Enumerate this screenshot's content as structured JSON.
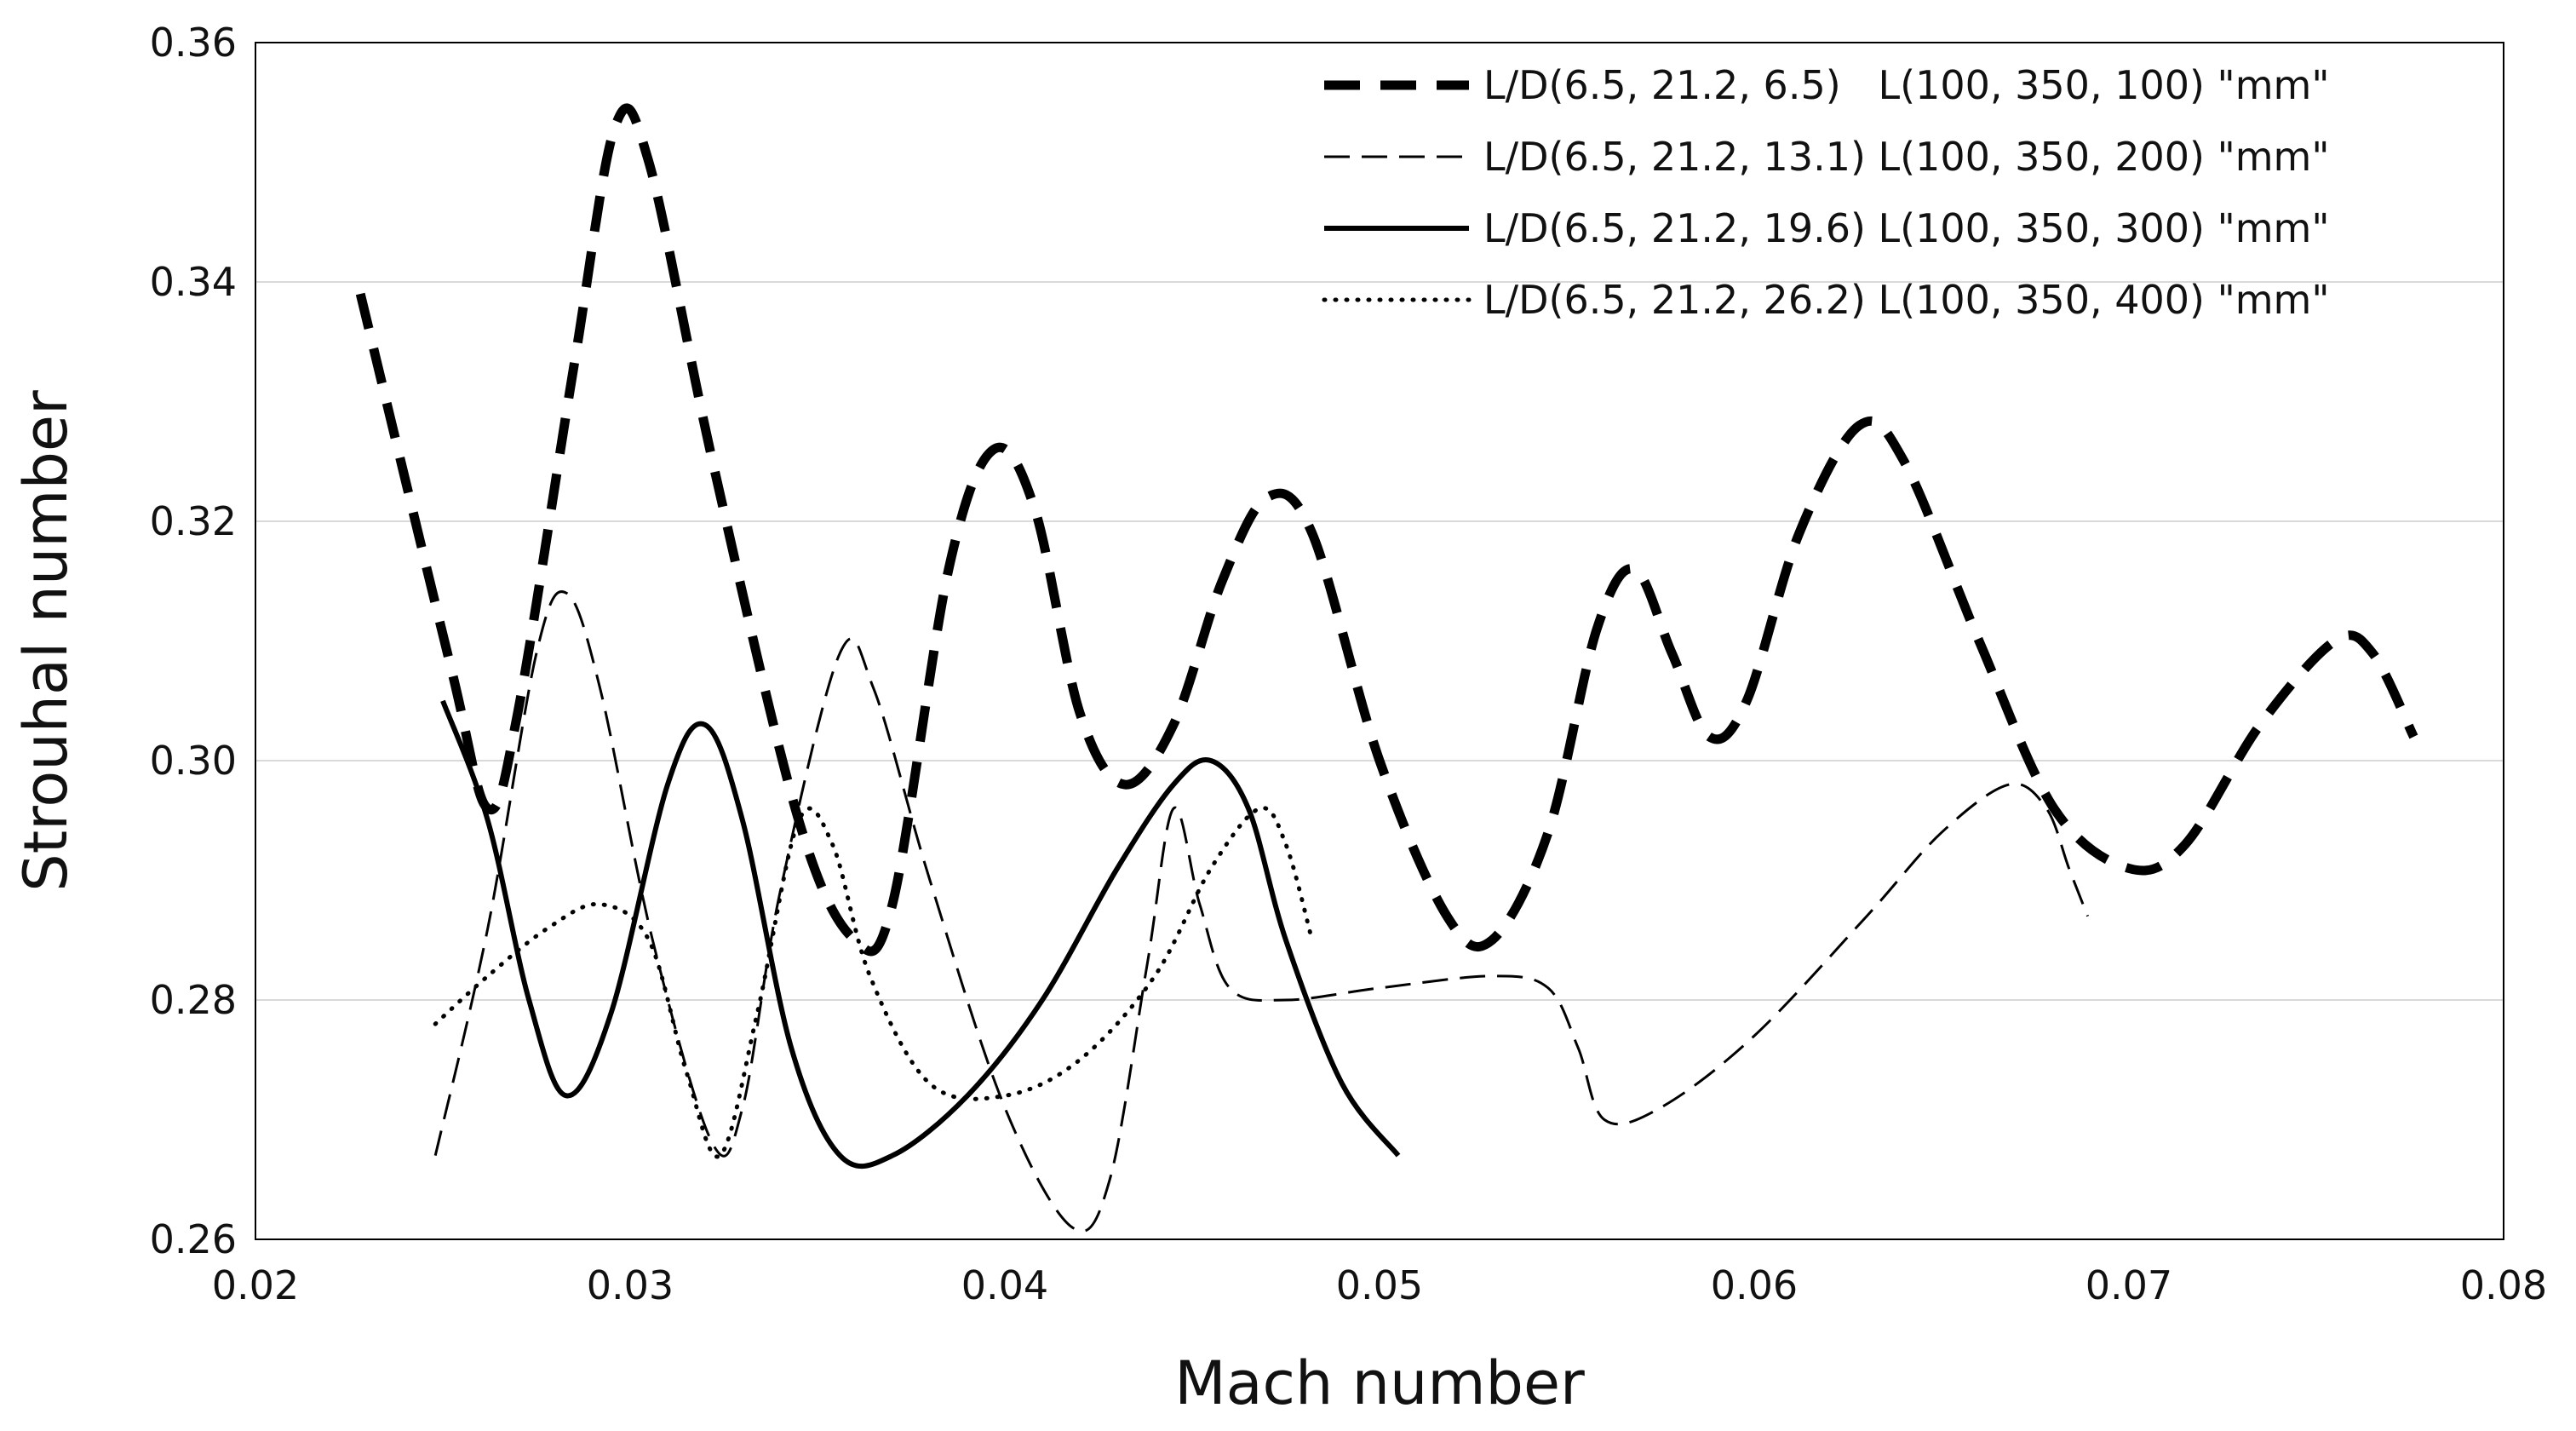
{
  "chart_data": {
    "type": "line",
    "title": "",
    "xlabel": "Mach number",
    "ylabel": "Strouhal number",
    "xlim": [
      0.02,
      0.08
    ],
    "ylim": [
      0.26,
      0.36
    ],
    "x_ticks": [
      "0.02",
      "0.03",
      "0.04",
      "0.05",
      "0.06",
      "0.07",
      "0.08"
    ],
    "y_ticks": [
      "0.26",
      "0.28",
      "0.30",
      "0.32",
      "0.34",
      "0.36"
    ],
    "grid": "horizontal",
    "legend_position": "top-right",
    "series": [
      {
        "name": "L/D(6.5, 21.2, 6.5)   L(100, 350, 100) \"mm\"",
        "style": "heavy-dash",
        "points": [
          [
            0.0228,
            0.339
          ],
          [
            0.0252,
            0.308
          ],
          [
            0.0262,
            0.296
          ],
          [
            0.027,
            0.304
          ],
          [
            0.0285,
            0.333
          ],
          [
            0.0296,
            0.353
          ],
          [
            0.0305,
            0.35
          ],
          [
            0.0322,
            0.325
          ],
          [
            0.0345,
            0.295
          ],
          [
            0.036,
            0.285
          ],
          [
            0.037,
            0.288
          ],
          [
            0.0385,
            0.316
          ],
          [
            0.0397,
            0.326
          ],
          [
            0.0408,
            0.321
          ],
          [
            0.042,
            0.304
          ],
          [
            0.0432,
            0.298
          ],
          [
            0.0445,
            0.303
          ],
          [
            0.0458,
            0.315
          ],
          [
            0.047,
            0.322
          ],
          [
            0.0482,
            0.319
          ],
          [
            0.05,
            0.3
          ],
          [
            0.0518,
            0.287
          ],
          [
            0.053,
            0.285
          ],
          [
            0.0545,
            0.294
          ],
          [
            0.0558,
            0.311
          ],
          [
            0.0568,
            0.316
          ],
          [
            0.0578,
            0.309
          ],
          [
            0.0588,
            0.302
          ],
          [
            0.0598,
            0.305
          ],
          [
            0.0612,
            0.319
          ],
          [
            0.0628,
            0.328
          ],
          [
            0.064,
            0.325
          ],
          [
            0.066,
            0.31
          ],
          [
            0.068,
            0.296
          ],
          [
            0.07,
            0.291
          ],
          [
            0.0715,
            0.293
          ],
          [
            0.0735,
            0.303
          ],
          [
            0.0755,
            0.31
          ],
          [
            0.0765,
            0.309
          ],
          [
            0.0776,
            0.302
          ]
        ]
      },
      {
        "name": "L/D(6.5, 21.2, 13.1) L(100, 350, 200) \"mm\"",
        "style": "thin-dash",
        "points": [
          [
            0.0248,
            0.267
          ],
          [
            0.0262,
            0.286
          ],
          [
            0.0275,
            0.309
          ],
          [
            0.0283,
            0.314
          ],
          [
            0.0292,
            0.306
          ],
          [
            0.0306,
            0.285
          ],
          [
            0.0322,
            0.268
          ],
          [
            0.033,
            0.271
          ],
          [
            0.034,
            0.289
          ],
          [
            0.0356,
            0.309
          ],
          [
            0.0365,
            0.306
          ],
          [
            0.038,
            0.29
          ],
          [
            0.04,
            0.271
          ],
          [
            0.0418,
            0.261
          ],
          [
            0.0428,
            0.265
          ],
          [
            0.0438,
            0.283
          ],
          [
            0.0445,
            0.296
          ],
          [
            0.0452,
            0.288
          ],
          [
            0.046,
            0.281
          ],
          [
            0.0475,
            0.28
          ],
          [
            0.05,
            0.281
          ],
          [
            0.053,
            0.282
          ],
          [
            0.0545,
            0.281
          ],
          [
            0.0553,
            0.276
          ],
          [
            0.056,
            0.27
          ],
          [
            0.0575,
            0.271
          ],
          [
            0.06,
            0.277
          ],
          [
            0.063,
            0.287
          ],
          [
            0.065,
            0.294
          ],
          [
            0.0668,
            0.298
          ],
          [
            0.0678,
            0.296
          ],
          [
            0.0684,
            0.291
          ],
          [
            0.0689,
            0.287
          ]
        ]
      },
      {
        "name": "L/D(6.5, 21.2, 19.6) L(100, 350, 300) \"mm\"",
        "style": "solid",
        "points": [
          [
            0.025,
            0.305
          ],
          [
            0.0262,
            0.295
          ],
          [
            0.0273,
            0.28
          ],
          [
            0.0283,
            0.272
          ],
          [
            0.0295,
            0.279
          ],
          [
            0.031,
            0.298
          ],
          [
            0.032,
            0.303
          ],
          [
            0.033,
            0.295
          ],
          [
            0.0343,
            0.276
          ],
          [
            0.0356,
            0.267
          ],
          [
            0.037,
            0.267
          ],
          [
            0.039,
            0.272
          ],
          [
            0.041,
            0.28
          ],
          [
            0.043,
            0.291
          ],
          [
            0.0445,
            0.298
          ],
          [
            0.0455,
            0.3
          ],
          [
            0.0465,
            0.296
          ],
          [
            0.0475,
            0.285
          ],
          [
            0.049,
            0.273
          ],
          [
            0.0505,
            0.267
          ]
        ]
      },
      {
        "name": "L/D(6.5, 21.2, 26.2) L(100, 350, 400) \"mm\"",
        "style": "dotted",
        "points": [
          [
            0.0248,
            0.278
          ],
          [
            0.0262,
            0.282
          ],
          [
            0.0278,
            0.286
          ],
          [
            0.0292,
            0.288
          ],
          [
            0.0305,
            0.285
          ],
          [
            0.0315,
            0.274
          ],
          [
            0.0324,
            0.267
          ],
          [
            0.0334,
            0.279
          ],
          [
            0.0345,
            0.295
          ],
          [
            0.0354,
            0.293
          ],
          [
            0.0364,
            0.282
          ],
          [
            0.038,
            0.273
          ],
          [
            0.04,
            0.272
          ],
          [
            0.042,
            0.275
          ],
          [
            0.044,
            0.282
          ],
          [
            0.0455,
            0.291
          ],
          [
            0.0468,
            0.296
          ],
          [
            0.0475,
            0.293
          ],
          [
            0.0482,
            0.285
          ]
        ]
      }
    ]
  },
  "colors": {
    "line": "#000000",
    "grid": "#d9d9d9",
    "axis": "#000000",
    "background": "#ffffff"
  }
}
